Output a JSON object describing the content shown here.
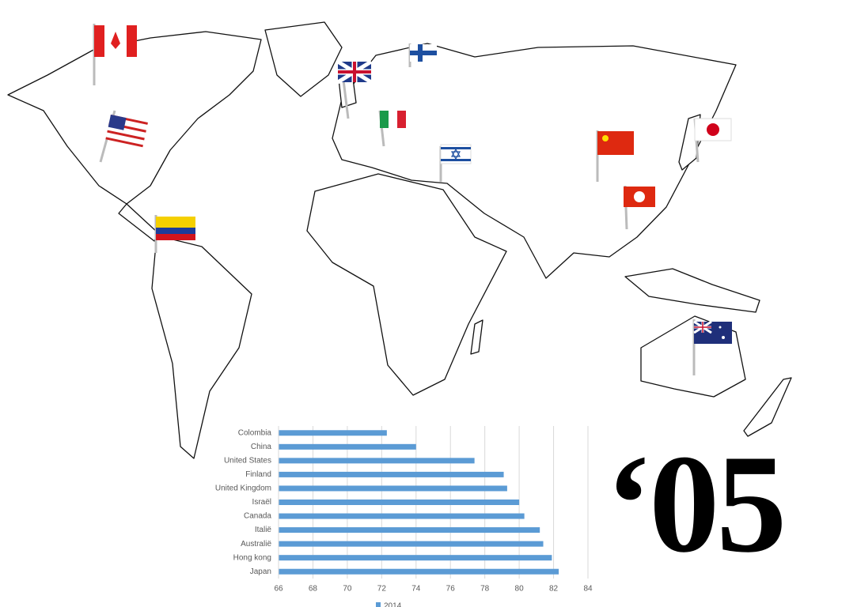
{
  "year_label": "‘05",
  "chart_data": {
    "type": "hbar",
    "categories": [
      "Colombia",
      "China",
      "United States",
      "Finland",
      "United Kingdom",
      "Israël",
      "Canada",
      "Italië",
      "Australië",
      "Hong kong",
      "Japan"
    ],
    "series": [
      {
        "name": "2014",
        "color": "#5b9bd5",
        "values": [
          72.3,
          74.0,
          77.4,
          79.1,
          79.3,
          80.0,
          80.3,
          81.2,
          81.4,
          81.9,
          82.3
        ]
      }
    ],
    "xlim": [
      66,
      84
    ],
    "xticks": [
      66,
      68,
      70,
      72,
      74,
      76,
      78,
      80,
      82,
      84
    ],
    "grid": true
  }
}
